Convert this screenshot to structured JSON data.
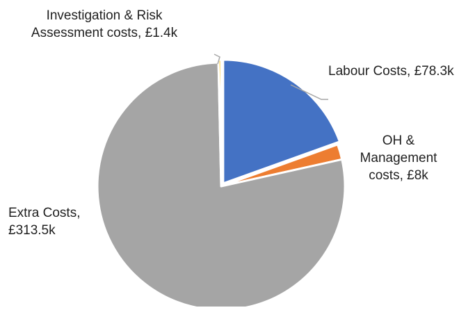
{
  "chart_data": {
    "type": "pie",
    "title": "",
    "start_angle_deg": 0,
    "direction": "clockwise",
    "slices": [
      {
        "category": "Labour Costs",
        "value": 78.3,
        "label_lines": [
          "Labour Costs, £78.3k"
        ],
        "color": "#4472C4"
      },
      {
        "category": "OH & Management costs",
        "value": 8,
        "label_lines": [
          "OH &",
          "Management",
          "costs, £8k"
        ],
        "color": "#ED7D31"
      },
      {
        "category": "Extra Costs",
        "value": 313.5,
        "label_lines": [
          "Extra Costs,",
          "£313.5k"
        ],
        "color": "#A5A5A5"
      },
      {
        "category": "Investigation & Risk Assessment costs",
        "value": 1.4,
        "label_lines": [
          "Investigation & Risk",
          "Assessment costs, £1.4k"
        ],
        "color": "#FFC000"
      }
    ],
    "legend": "none",
    "leader_line_color": "#A6A6A6",
    "slice_border_color": "#FFFFFF"
  }
}
